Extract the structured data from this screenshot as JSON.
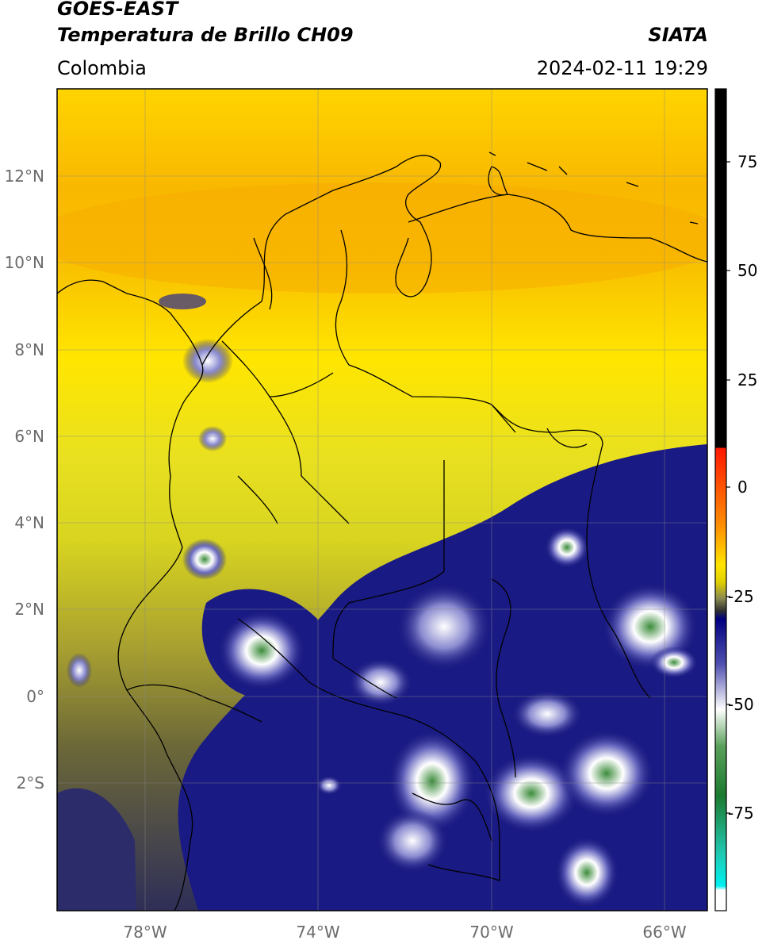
{
  "header": {
    "title_1": "GOES-EAST",
    "title_2": "Temperatura de Brillo CH09",
    "region": "Colombia",
    "brand": "SIATA",
    "datetime": "2024-02-11 19:29"
  },
  "map": {
    "lon_ticks": [
      "78°W",
      "74°W",
      "70°W",
      "66°W"
    ],
    "lat_ticks": [
      "12°N",
      "10°N",
      "8°N",
      "6°N",
      "4°N",
      "2°N",
      "0°",
      "2°S"
    ],
    "colors": {
      "warm": "#f7b400",
      "mid": "#ffe000",
      "olive": "#9c9c30",
      "cold": "#14147a",
      "very_cold": "#ffffff",
      "coldest": "#3a8a3a"
    }
  },
  "colorbar": {
    "ticks": [
      "75",
      "50",
      "25",
      "0",
      "-25",
      "-50",
      "-75"
    ],
    "stops": [
      {
        "color": "#000000",
        "label": "75"
      },
      {
        "color": "#ff2000",
        "label": "0"
      },
      {
        "color": "#ffe800",
        "label": "-25"
      },
      {
        "color": "#000080",
        "label": "-25"
      },
      {
        "color": "#ffffff",
        "label": "-50"
      },
      {
        "color": "#2a8a2a",
        "label": "-75"
      },
      {
        "color": "#00e0e0",
        "label": "-75"
      }
    ]
  }
}
